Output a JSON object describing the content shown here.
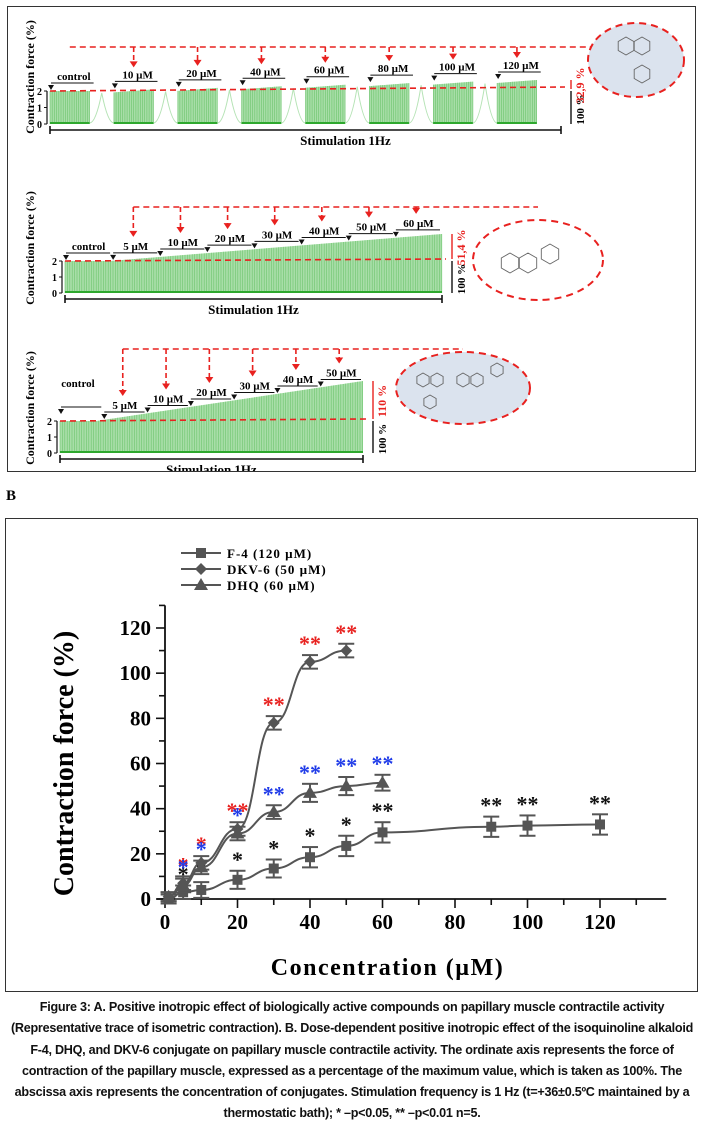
{
  "panel_b_label": "B",
  "caption": "Figure 3: A. Positive inotropic effect of biologically active compounds on papillary muscle contractile activity (Representative trace of isometric contraction). B. Dose-dependent positive inotropic effect of the isoquinoline alkaloid F-4, DHQ, and DKV-6 conjugate on papillary muscle contractile activity. The ordinate axis represents the force of contraction of the papillary muscle, expressed as a percentage of the maximum value, which is taken as 100%. The abscissa axis represents the concentration of conjugates. Stimulation frequency is 1 Hz (t=+36±0.5ºC maintained by a thermostatic bath); * –p<0.05, ** –p<0.01 n=5.",
  "colors": {
    "trace": "#2ea82e",
    "trace_fill": "#a8dea8",
    "annotation": "#e8211f",
    "molecule_bg": "#dbe3ee",
    "series": "#555555",
    "star_black": "#111111",
    "star_red": "#e8211f",
    "star_blue": "#1f3be8"
  },
  "panel_a": {
    "traces": [
      {
        "name": "F-4",
        "ylabel": "Contraction force (%)",
        "yticks": [
          "0",
          "1",
          "2"
        ],
        "xlabel": "Stimulation 1Hz",
        "segments": [
          "control",
          "10 µM",
          "20 µM",
          "40 µM",
          "60 µM",
          "80 µM",
          "100 µM",
          "120 µM"
        ],
        "baseline_label": "100 %",
        "increase_label": "32,9 %",
        "molecule": "isoquinoline alkaloid F-4 (H3CO, NH·HCl, OCH3)",
        "mode": "washout"
      },
      {
        "name": "DHQ",
        "ylabel": "Contraction force (%)",
        "yticks": [
          "0",
          "1",
          "2"
        ],
        "xlabel": "Stimulation 1Hz",
        "segments": [
          "control",
          "5 µM",
          "10 µM",
          "20 µM",
          "30 µM",
          "40 µM",
          "50 µM",
          "60 µM"
        ],
        "baseline_label": "100 %",
        "increase_label": "51,4 %",
        "molecule": "dihydroquercetin (OH groups)",
        "mode": "cumulative"
      },
      {
        "name": "DKV-6",
        "ylabel": "Contraction force (%)",
        "yticks": [
          "0",
          "1",
          "2"
        ],
        "xlabel": "Stimulation 1Hz",
        "segments": [
          "control",
          "5 µM",
          "10 µM",
          "20 µM",
          "30 µM",
          "40 µM",
          "50 µM"
        ],
        "baseline_label": "100 %",
        "increase_label": "110 %",
        "molecule": "DKV-6 conjugate",
        "mode": "cumulative"
      }
    ]
  },
  "chart_data": {
    "type": "line",
    "title": "",
    "xlabel": "Concentration (µM)",
    "ylabel": "Contraction force (%)",
    "xlim": [
      0,
      120
    ],
    "ylim": [
      0,
      130
    ],
    "xticks": [
      0,
      20,
      40,
      60,
      80,
      100,
      120
    ],
    "yticks": [
      0,
      20,
      40,
      60,
      80,
      100,
      120
    ],
    "grid": false,
    "legend_position": "top-left",
    "series": [
      {
        "name": "F-4  (120 µM)",
        "marker": "square",
        "x": [
          1,
          5,
          10,
          20,
          30,
          40,
          50,
          60,
          90,
          100,
          120
        ],
        "y": [
          0,
          3,
          4,
          8.5,
          13.5,
          18.5,
          23.5,
          29.5,
          32,
          32.5,
          33
        ],
        "err": [
          2,
          3,
          3.5,
          4,
          4,
          4.5,
          4.5,
          4.5,
          4.5,
          4.5,
          4.5
        ],
        "significance": [
          "",
          "*",
          "*",
          "*",
          "*",
          "*",
          "*",
          "**",
          "**",
          "**",
          "**"
        ],
        "star_color": "black"
      },
      {
        "name": "DKV-6  (50 µM)",
        "marker": "diamond",
        "x": [
          1,
          5,
          10,
          20,
          30,
          40,
          50
        ],
        "y": [
          1,
          7,
          16,
          31,
          78,
          105,
          110
        ],
        "err": [
          2,
          3,
          3,
          3,
          3,
          3,
          3
        ],
        "significance": [
          "",
          "*",
          "*",
          "**",
          "**",
          "**",
          "**"
        ],
        "star_color": "red"
      },
      {
        "name": "DHQ (60 µM)",
        "marker": "triangle",
        "x": [
          1,
          5,
          10,
          20,
          30,
          40,
          50,
          60
        ],
        "y": [
          1,
          6,
          14,
          29,
          38.5,
          47,
          50,
          51.5
        ],
        "err": [
          2,
          3,
          3,
          3,
          3,
          4,
          4,
          3.5
        ],
        "significance": [
          "",
          "*",
          "*",
          "*",
          "**",
          "**",
          "**",
          "**"
        ],
        "star_color": "blue"
      }
    ]
  }
}
